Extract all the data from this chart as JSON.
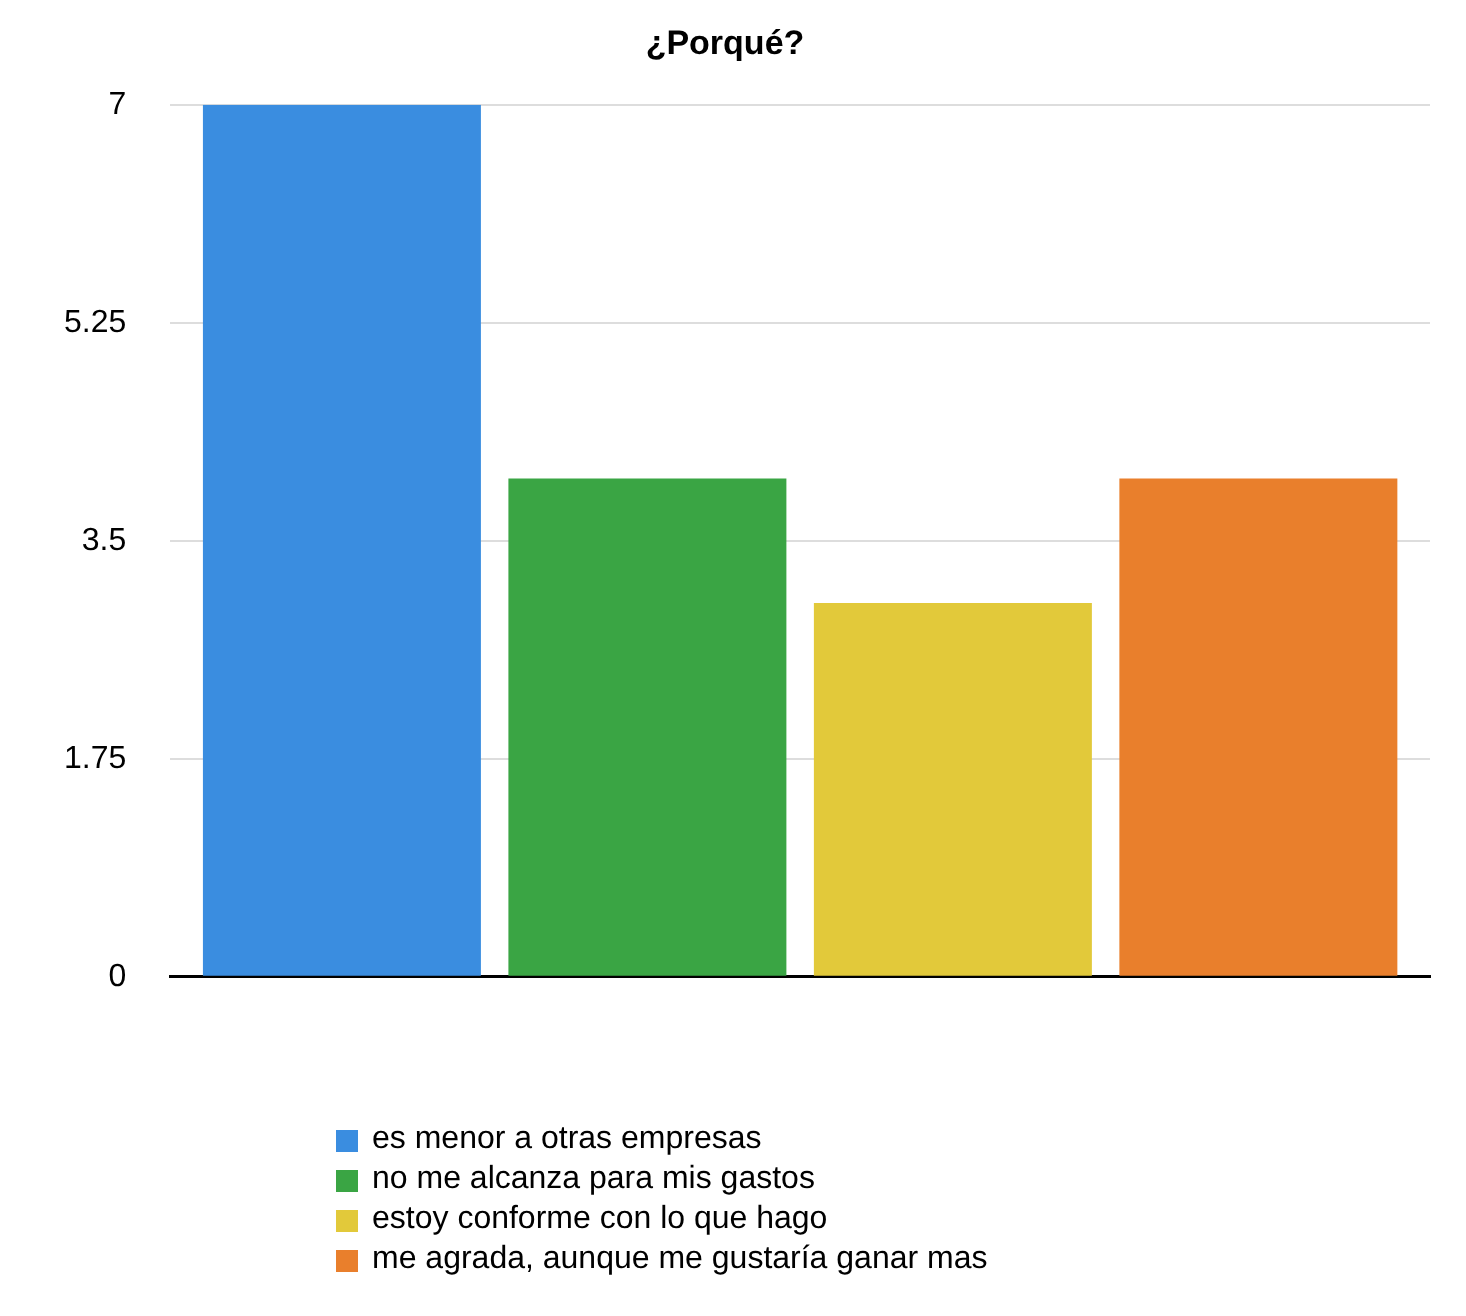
{
  "chart_data": {
    "type": "bar",
    "title": "¿Porqué?",
    "categories": [
      null
    ],
    "series": [
      {
        "name": "es menor a otras empresas",
        "color": "#3a8de0",
        "values": [
          7
        ]
      },
      {
        "name": "no me alcanza para mis gastos",
        "color": "#3aa544",
        "values": [
          4
        ]
      },
      {
        "name": "estoy conforme con lo que hago",
        "color": "#e2c93a",
        "values": [
          3
        ]
      },
      {
        "name": "me agrada, aunque me gustaría ganar mas",
        "color": "#e97f2c",
        "values": [
          4
        ]
      }
    ],
    "ylim": [
      0,
      7
    ],
    "yticks": [
      0,
      1.75,
      3.5,
      5.25,
      7
    ],
    "grid": "y",
    "legend": "bottom"
  }
}
